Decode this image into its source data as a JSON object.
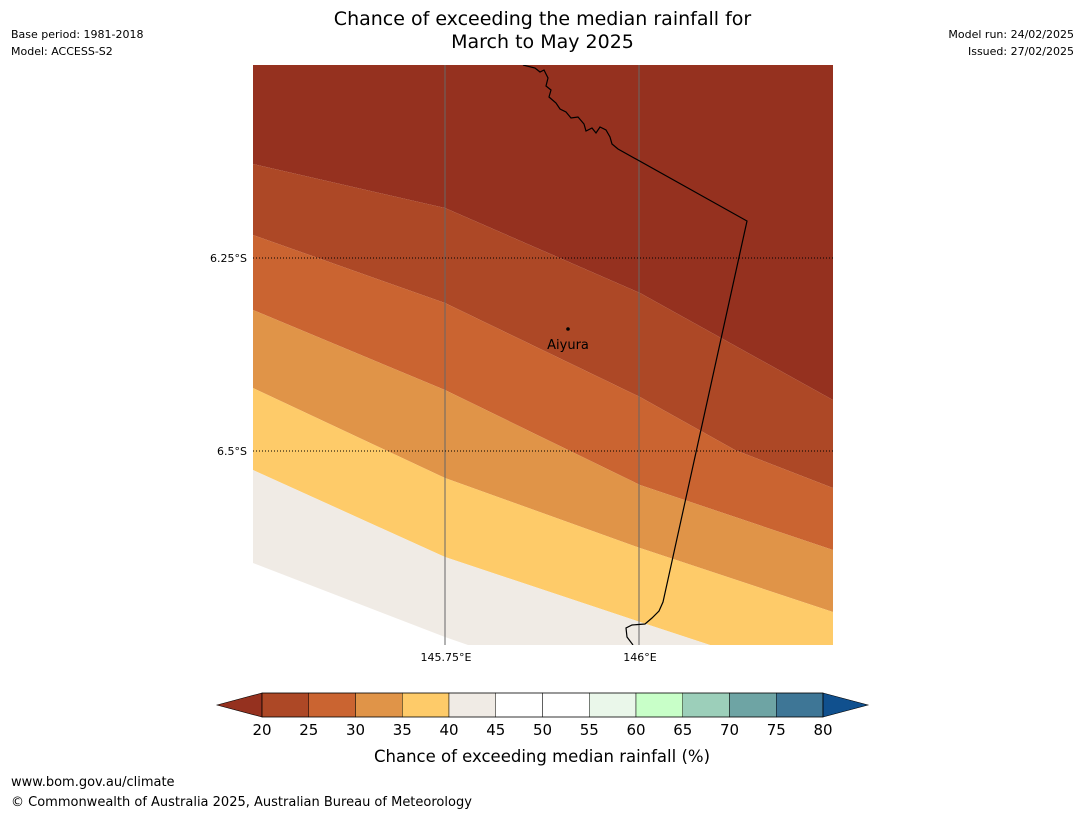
{
  "title": {
    "line1": "Chance of exceeding the median rainfall for",
    "line2": "March to May 2025"
  },
  "meta_left": {
    "base_period": "Base period: 1981-2018",
    "model": "Model: ACCESS-S2"
  },
  "meta_right": {
    "model_run": "Model run: 24/02/2025",
    "issued": "Issued: 27/02/2025"
  },
  "map": {
    "lat_labels": [
      "6.25°S",
      "6.5°S"
    ],
    "lon_labels": [
      "145.75°E",
      "146°E"
    ],
    "place": {
      "name": "Aiyura"
    },
    "regions": [
      {
        "band": "<20",
        "color": "#95311f"
      },
      {
        "band": "20-25",
        "color": "#ad4826"
      },
      {
        "band": "25-30",
        "color": "#ca6431"
      },
      {
        "band": "30-35",
        "color": "#e09448"
      },
      {
        "band": "35-40",
        "color": "#fecb69"
      },
      {
        "band": "40-45",
        "color": "#f0ebe5"
      }
    ]
  },
  "colorbar": {
    "ticks": [
      "20",
      "25",
      "30",
      "35",
      "40",
      "45",
      "50",
      "55",
      "60",
      "65",
      "70",
      "75",
      "80"
    ],
    "under_color": "#95311f",
    "over_color": "#10508e",
    "segment_colors": [
      "#ad4826",
      "#ca6431",
      "#e09448",
      "#fecb69",
      "#f0ebe5",
      "#ffffff",
      "#ffffff",
      "#eaf7ea",
      "#c8ffc8",
      "#9ccfba",
      "#6ea4a4",
      "#3e7696"
    ],
    "label": "Chance of exceeding median rainfall (%)"
  },
  "footer": {
    "url": "www.bom.gov.au/climate",
    "copyright": "© Commonwealth of Australia 2025, Australian Bureau of Meteorology"
  }
}
